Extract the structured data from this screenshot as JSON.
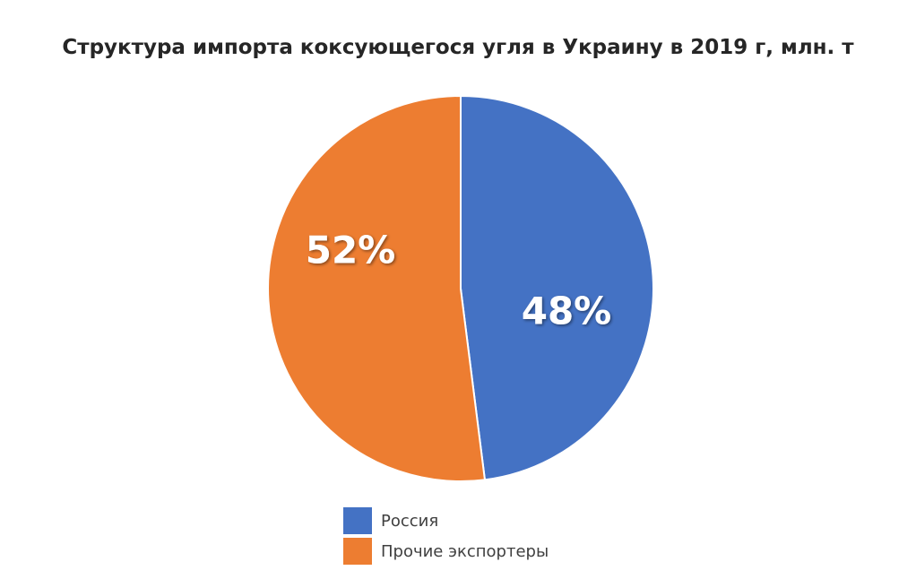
{
  "chart_data": {
    "type": "pie",
    "title": "Структура импорта коксующегося угля в Украину в 2019 г, млн. т",
    "categories": [
      "Россия",
      "Прочие экспортеры"
    ],
    "values": [
      48,
      52
    ],
    "labels": [
      "48%",
      "52%"
    ],
    "colors": [
      "#4472c4",
      "#ed7d31"
    ],
    "legend": "bottom"
  }
}
